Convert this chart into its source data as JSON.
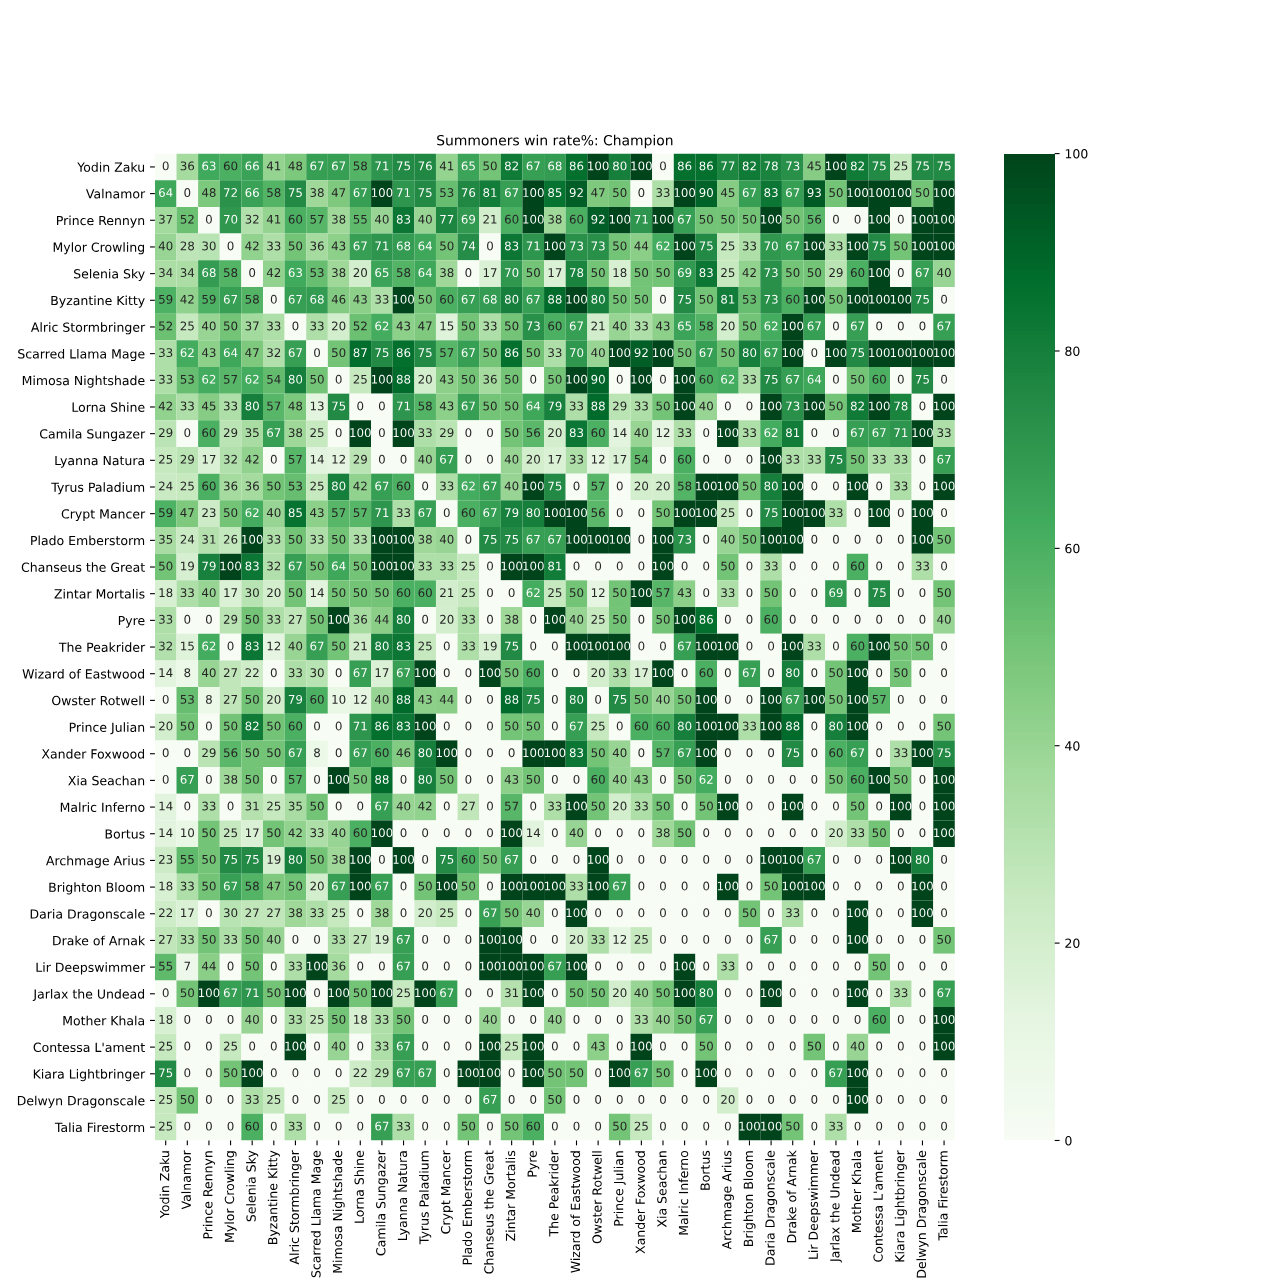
{
  "chart_data": {
    "type": "heatmap",
    "title": "Summoners win rate%: Champion",
    "categories": [
      "Yodin Zaku",
      "Valnamor",
      "Prince Rennyn",
      "Mylor Crowling",
      "Selenia Sky",
      "Byzantine Kitty",
      "Alric Stormbringer",
      "Scarred Llama Mage",
      "Mimosa Nightshade",
      "Lorna Shine",
      "Camila Sungazer",
      "Lyanna Natura",
      "Tyrus Paladium",
      "Crypt Mancer",
      "Plado Emberstorm",
      "Chanseus the Great",
      "Zintar Mortalis",
      "Pyre",
      "The Peakrider",
      "Wizard of Eastwood",
      "Owster Rotwell",
      "Prince Julian",
      "Xander Foxwood",
      "Xia Seachan",
      "Malric Inferno",
      "Bortus",
      "Archmage Arius",
      "Brighton Bloom",
      "Daria Dragonscale",
      "Drake of Arnak",
      "Lir Deepswimmer",
      "Jarlax the Undead",
      "Mother Khala",
      "Contessa L'ament",
      "Kiara Lightbringer",
      "Delwyn Dragonscale",
      "Talia Firestorm"
    ],
    "y_categories": [
      "Yodin Zaku",
      "Valnamor",
      "Prince Rennyn",
      "Mylor Crowling",
      "Selenia Sky",
      "Byzantine Kitty",
      "Alric Stormbringer",
      "Scarred Llama Mage",
      "Mimosa Nightshade",
      "Lorna Shine",
      "Camila Sungazer",
      "Lyanna Natura",
      "Tyrus Paladium",
      "Crypt Mancer",
      "Plado Emberstorm",
      "Chanseus the Great",
      "Zintar Mortalis",
      "Pyre",
      "The Peakrider",
      "Wizard of Eastwood",
      "Owster Rotwell",
      "Prince Julian",
      "Xander Foxwood",
      "Xia Seachan",
      "Malric Inferno",
      "Bortus",
      "Archmage Arius",
      "Brighton Bloom",
      "Daria Dragonscale",
      "Drake of Arnak",
      "Lir Deepswimmer",
      "Jarlax the Undead",
      "Mother Khala",
      "Contessa L'ament",
      "Kiara Lightbringer",
      "Delwyn Dragonscale",
      "Talia Firestorm"
    ],
    "cells": [
      [
        0,
        36,
        63,
        60,
        66,
        41,
        48,
        67,
        67,
        58,
        71,
        75,
        76,
        41,
        65,
        50,
        82,
        67,
        68,
        86,
        100,
        80,
        100,
        0,
        86,
        86,
        77,
        82,
        78,
        73,
        45,
        100,
        82,
        75,
        25,
        75,
        75
      ],
      [
        64,
        0,
        48,
        72,
        66,
        58,
        75,
        38,
        47,
        67,
        100,
        71,
        75,
        53,
        76,
        81,
        67,
        100,
        85,
        92,
        47,
        50,
        0,
        33,
        100,
        90,
        45,
        67,
        83,
        67,
        93,
        50,
        100,
        100,
        100,
        50,
        100
      ],
      [
        37,
        52,
        0,
        70,
        32,
        41,
        60,
        57,
        38,
        55,
        40,
        83,
        40,
        77,
        69,
        21,
        60,
        100,
        38,
        60,
        92,
        100,
        71,
        100,
        67,
        50,
        50,
        50,
        100,
        50,
        56,
        0,
        0,
        100,
        0,
        100,
        100
      ],
      [
        40,
        28,
        30,
        0,
        42,
        33,
        50,
        36,
        43,
        67,
        71,
        68,
        64,
        50,
        74,
        0,
        83,
        71,
        100,
        73,
        73,
        50,
        44,
        62,
        100,
        75,
        25,
        33,
        70,
        67,
        100,
        33,
        100,
        75,
        50,
        100,
        100
      ],
      [
        34,
        34,
        68,
        58,
        0,
        42,
        63,
        53,
        38,
        20,
        65,
        58,
        64,
        38,
        0,
        17,
        70,
        50,
        17,
        78,
        50,
        18,
        50,
        50,
        69,
        83,
        25,
        42,
        73,
        50,
        50,
        29,
        60,
        100,
        0,
        67,
        40
      ],
      [
        59,
        42,
        59,
        67,
        58,
        0,
        67,
        68,
        46,
        43,
        33,
        100,
        50,
        60,
        67,
        68,
        80,
        67,
        88,
        100,
        80,
        50,
        50,
        0,
        75,
        50,
        81,
        53,
        73,
        60,
        100,
        50,
        100,
        100,
        100,
        75,
        0
      ],
      [
        52,
        25,
        40,
        50,
        37,
        33,
        0,
        33,
        20,
        52,
        62,
        43,
        47,
        15,
        50,
        33,
        50,
        73,
        60,
        67,
        21,
        40,
        33,
        43,
        65,
        58,
        20,
        50,
        62,
        100,
        67,
        0,
        67,
        0,
        0,
        0,
        67
      ],
      [
        33,
        62,
        43,
        64,
        47,
        32,
        67,
        0,
        50,
        87,
        75,
        86,
        75,
        57,
        67,
        50,
        86,
        50,
        33,
        70,
        40,
        100,
        92,
        100,
        50,
        67,
        50,
        80,
        67,
        100,
        0,
        100,
        75,
        100,
        100,
        100,
        100
      ],
      [
        33,
        53,
        62,
        57,
        62,
        54,
        80,
        50,
        0,
        25,
        100,
        88,
        20,
        43,
        50,
        36,
        50,
        0,
        50,
        100,
        90,
        0,
        100,
        0,
        100,
        60,
        62,
        33,
        75,
        67,
        64,
        0,
        50,
        60,
        0,
        75,
        0
      ],
      [
        42,
        33,
        45,
        33,
        80,
        57,
        48,
        13,
        75,
        0,
        0,
        71,
        58,
        43,
        67,
        50,
        50,
        64,
        79,
        33,
        88,
        29,
        33,
        50,
        100,
        40,
        0,
        0,
        100,
        73,
        100,
        50,
        82,
        100,
        78,
        0,
        100
      ],
      [
        29,
        0,
        60,
        29,
        35,
        67,
        38,
        25,
        0,
        100,
        0,
        100,
        33,
        29,
        0,
        0,
        50,
        56,
        20,
        83,
        60,
        14,
        40,
        12,
        33,
        0,
        100,
        33,
        62,
        81,
        0,
        0,
        67,
        67,
        71,
        100,
        33
      ],
      [
        25,
        29,
        17,
        32,
        42,
        0,
        57,
        14,
        12,
        29,
        0,
        0,
        40,
        67,
        0,
        0,
        40,
        20,
        17,
        33,
        12,
        17,
        54,
        0,
        60,
        0,
        0,
        0,
        100,
        33,
        33,
        75,
        50,
        33,
        33,
        0,
        67
      ],
      [
        24,
        25,
        60,
        36,
        36,
        50,
        53,
        25,
        80,
        42,
        67,
        60,
        0,
        33,
        62,
        67,
        40,
        100,
        75,
        0,
        57,
        0,
        20,
        20,
        58,
        100,
        100,
        50,
        80,
        100,
        0,
        0,
        100,
        0,
        33,
        0,
        100
      ],
      [
        59,
        47,
        23,
        50,
        62,
        40,
        85,
        43,
        57,
        57,
        71,
        33,
        67,
        0,
        60,
        67,
        79,
        80,
        100,
        100,
        56,
        0,
        0,
        50,
        100,
        100,
        25,
        0,
        75,
        100,
        100,
        33,
        0,
        100,
        0,
        100,
        0
      ],
      [
        35,
        24,
        31,
        26,
        100,
        33,
        50,
        33,
        50,
        33,
        100,
        100,
        38,
        40,
        0,
        75,
        75,
        67,
        67,
        100,
        100,
        100,
        0,
        100,
        73,
        0,
        40,
        50,
        100,
        100,
        0,
        0,
        0,
        0,
        0,
        100,
        50
      ],
      [
        50,
        19,
        79,
        100,
        83,
        32,
        67,
        50,
        64,
        50,
        100,
        100,
        33,
        33,
        25,
        0,
        100,
        100,
        81,
        0,
        0,
        0,
        0,
        100,
        0,
        0,
        50,
        0,
        33,
        0,
        0,
        0,
        60,
        0,
        0,
        33,
        0
      ],
      [
        18,
        33,
        40,
        17,
        30,
        20,
        50,
        14,
        50,
        50,
        50,
        60,
        60,
        21,
        25,
        0,
        0,
        62,
        25,
        50,
        12,
        50,
        100,
        57,
        43,
        0,
        33,
        0,
        50,
        0,
        0,
        69,
        0,
        75,
        0,
        0,
        50
      ],
      [
        33,
        0,
        0,
        29,
        50,
        33,
        27,
        50,
        100,
        36,
        44,
        80,
        0,
        20,
        33,
        0,
        38,
        0,
        100,
        40,
        25,
        50,
        0,
        50,
        100,
        86,
        0,
        0,
        60,
        0,
        0,
        0,
        0,
        0,
        0,
        0,
        40
      ],
      [
        32,
        15,
        62,
        0,
        83,
        12,
        40,
        67,
        50,
        21,
        80,
        83,
        25,
        0,
        33,
        19,
        75,
        0,
        0,
        100,
        100,
        100,
        0,
        0,
        67,
        100,
        100,
        0,
        0,
        100,
        33,
        0,
        60,
        100,
        50,
        50,
        0
      ],
      [
        14,
        8,
        40,
        27,
        22,
        0,
        33,
        30,
        0,
        67,
        17,
        67,
        100,
        0,
        0,
        100,
        50,
        60,
        0,
        0,
        20,
        33,
        17,
        100,
        0,
        60,
        0,
        67,
        0,
        80,
        0,
        50,
        100,
        0,
        50,
        0,
        0
      ],
      [
        0,
        53,
        8,
        27,
        50,
        20,
        79,
        60,
        10,
        12,
        40,
        88,
        43,
        44,
        0,
        0,
        88,
        75,
        0,
        80,
        0,
        75,
        50,
        40,
        50,
        100,
        0,
        0,
        100,
        67,
        100,
        50,
        100,
        57,
        0,
        0,
        0
      ],
      [
        20,
        50,
        0,
        50,
        82,
        50,
        60,
        0,
        0,
        71,
        86,
        83,
        100,
        0,
        0,
        0,
        50,
        50,
        0,
        67,
        25,
        0,
        60,
        60,
        80,
        100,
        100,
        33,
        100,
        88,
        0,
        80,
        100,
        0,
        0,
        0,
        50
      ],
      [
        0,
        0,
        29,
        56,
        50,
        50,
        67,
        8,
        0,
        67,
        60,
        46,
        80,
        100,
        0,
        0,
        0,
        100,
        100,
        83,
        50,
        40,
        0,
        57,
        67,
        100,
        0,
        0,
        0,
        75,
        0,
        60,
        67,
        0,
        33,
        100,
        75
      ],
      [
        0,
        67,
        0,
        38,
        50,
        0,
        57,
        0,
        100,
        50,
        88,
        0,
        80,
        50,
        0,
        0,
        43,
        50,
        0,
        0,
        60,
        40,
        43,
        0,
        50,
        62,
        0,
        0,
        0,
        0,
        0,
        50,
        60,
        100,
        50,
        0,
        100
      ],
      [
        14,
        0,
        33,
        0,
        31,
        25,
        35,
        50,
        0,
        0,
        67,
        40,
        42,
        0,
        27,
        0,
        57,
        0,
        33,
        100,
        50,
        20,
        33,
        50,
        0,
        50,
        100,
        0,
        0,
        100,
        0,
        0,
        50,
        0,
        100,
        0,
        100
      ],
      [
        14,
        10,
        50,
        25,
        17,
        50,
        42,
        33,
        40,
        60,
        100,
        0,
        0,
        0,
        0,
        0,
        100,
        14,
        0,
        40,
        0,
        0,
        0,
        38,
        50,
        0,
        0,
        0,
        0,
        0,
        0,
        20,
        33,
        50,
        0,
        0,
        100
      ],
      [
        23,
        55,
        50,
        75,
        75,
        19,
        80,
        50,
        38,
        100,
        0,
        100,
        0,
        75,
        60,
        50,
        67,
        0,
        0,
        0,
        100,
        0,
        0,
        0,
        0,
        0,
        0,
        0,
        100,
        100,
        67,
        0,
        0,
        0,
        100,
        80,
        0
      ],
      [
        18,
        33,
        50,
        67,
        58,
        47,
        50,
        20,
        67,
        100,
        67,
        0,
        50,
        100,
        50,
        0,
        100,
        100,
        100,
        33,
        100,
        67,
        0,
        0,
        0,
        0,
        100,
        0,
        50,
        100,
        100,
        0,
        0,
        0,
        0,
        100,
        0
      ],
      [
        22,
        17,
        0,
        30,
        27,
        27,
        38,
        33,
        25,
        0,
        38,
        0,
        20,
        25,
        0,
        67,
        50,
        40,
        0,
        100,
        0,
        0,
        0,
        0,
        0,
        0,
        0,
        50,
        0,
        33,
        0,
        0,
        100,
        0,
        0,
        100,
        0
      ],
      [
        27,
        33,
        50,
        33,
        50,
        40,
        0,
        0,
        33,
        27,
        19,
        67,
        0,
        0,
        0,
        100,
        100,
        0,
        0,
        20,
        33,
        12,
        25,
        0,
        0,
        0,
        0,
        0,
        67,
        0,
        0,
        0,
        100,
        0,
        0,
        0,
        50
      ],
      [
        55,
        7,
        44,
        0,
        50,
        0,
        33,
        100,
        36,
        0,
        0,
        67,
        0,
        0,
        0,
        100,
        100,
        100,
        67,
        100,
        0,
        0,
        0,
        0,
        100,
        0,
        33,
        0,
        0,
        0,
        0,
        0,
        0,
        50,
        0,
        0,
        0
      ],
      [
        0,
        50,
        100,
        67,
        71,
        50,
        100,
        0,
        100,
        50,
        100,
        25,
        100,
        67,
        0,
        0,
        31,
        100,
        0,
        50,
        50,
        20,
        40,
        50,
        100,
        80,
        0,
        0,
        100,
        0,
        0,
        0,
        100,
        0,
        33,
        0,
        67
      ],
      [
        18,
        0,
        0,
        0,
        40,
        0,
        33,
        25,
        50,
        18,
        33,
        50,
        0,
        0,
        0,
        40,
        0,
        0,
        40,
        0,
        0,
        0,
        33,
        40,
        50,
        67,
        0,
        0,
        0,
        0,
        0,
        0,
        0,
        60,
        0,
        0,
        100
      ],
      [
        25,
        0,
        0,
        25,
        0,
        0,
        100,
        0,
        40,
        0,
        33,
        67,
        0,
        0,
        0,
        100,
        25,
        100,
        0,
        0,
        43,
        0,
        100,
        0,
        0,
        50,
        0,
        0,
        0,
        0,
        50,
        0,
        40,
        0,
        0,
        0,
        100
      ],
      [
        75,
        0,
        0,
        50,
        100,
        0,
        0,
        0,
        0,
        22,
        29,
        67,
        67,
        0,
        100,
        100,
        0,
        100,
        50,
        50,
        0,
        100,
        67,
        50,
        0,
        100,
        0,
        0,
        0,
        0,
        0,
        67,
        100,
        0,
        0,
        0,
        0
      ],
      [
        25,
        50,
        0,
        0,
        33,
        25,
        0,
        0,
        25,
        0,
        0,
        0,
        0,
        0,
        0,
        67,
        0,
        0,
        50,
        0,
        0,
        0,
        0,
        0,
        0,
        0,
        20,
        0,
        0,
        0,
        0,
        0,
        100,
        0,
        0,
        0,
        0
      ],
      [
        25,
        0,
        0,
        0,
        60,
        0,
        33,
        0,
        0,
        0,
        67,
        33,
        0,
        0,
        50,
        0,
        50,
        60,
        0,
        0,
        0,
        50,
        25,
        0,
        0,
        0,
        0,
        100,
        100,
        50,
        0,
        33,
        0,
        0,
        0,
        0,
        0
      ]
    ],
    "clim": [
      0,
      100
    ],
    "cticks": [
      0,
      20,
      40,
      60,
      80,
      100
    ],
    "data_labels": true
  }
}
